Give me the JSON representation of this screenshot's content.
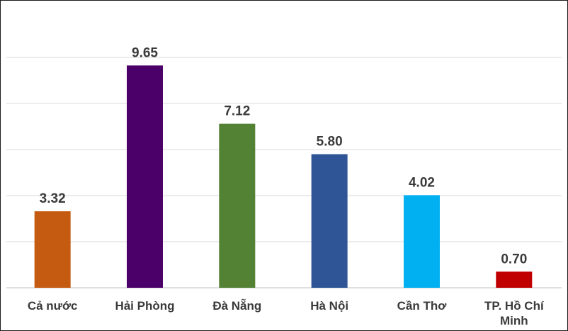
{
  "chart_data": {
    "type": "bar",
    "categories": [
      "Cả nước",
      "Hải Phòng",
      "Đà Nẵng",
      "Hà Nội",
      "Cần Thơ",
      "TP. Hồ Chí Minh"
    ],
    "values": [
      3.32,
      9.65,
      7.12,
      5.8,
      4.02,
      0.7
    ],
    "value_labels": [
      "3.32",
      "9.65",
      "7.12",
      "5.80",
      "4.02",
      "0.70"
    ],
    "colors": [
      "#c55a11",
      "#4b0069",
      "#548235",
      "#2f5597",
      "#00b0f0",
      "#c00000"
    ],
    "ylim": [
      0,
      10
    ],
    "grid": true,
    "legend": "none"
  }
}
